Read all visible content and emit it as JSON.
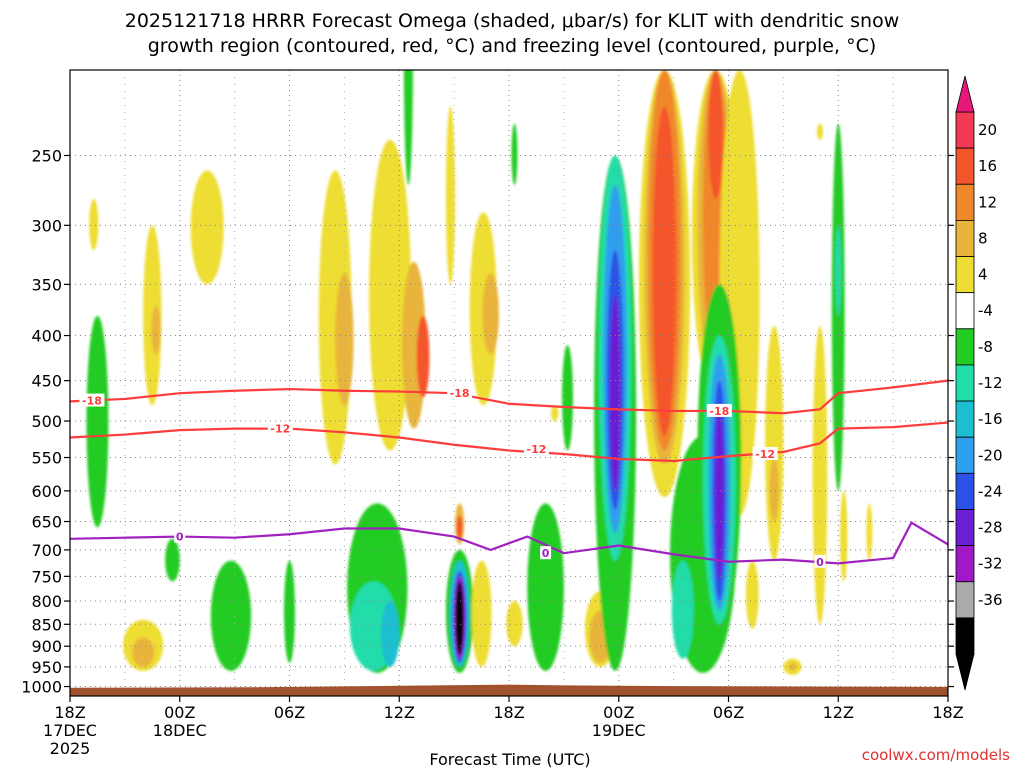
{
  "chart_data": {
    "type": "heatmap",
    "title_line1": "2025121718 HRRR Forecast Omega (shaded, μbar/s) for KLIT with dendritic snow",
    "title_line2": "growth region (contoured, red, °C) and freezing level (contoured, purple, °C)",
    "xlabel": "Forecast Time (UTC)",
    "watermark": "coolwx.com/models",
    "x_hours": [
      0,
      6,
      12,
      18,
      24,
      30,
      36,
      42,
      48
    ],
    "x_ticks": [
      {
        "hour": 0,
        "label": "18Z",
        "date": "17DEC",
        "year": "2025"
      },
      {
        "hour": 6,
        "label": "00Z",
        "date": "18DEC",
        "year": ""
      },
      {
        "hour": 12,
        "label": "06Z",
        "date": "",
        "year": ""
      },
      {
        "hour": 18,
        "label": "12Z",
        "date": "",
        "year": ""
      },
      {
        "hour": 24,
        "label": "18Z",
        "date": "",
        "year": ""
      },
      {
        "hour": 30,
        "label": "00Z",
        "date": "19DEC",
        "year": ""
      },
      {
        "hour": 36,
        "label": "06Z",
        "date": "",
        "year": ""
      },
      {
        "hour": 42,
        "label": "12Z",
        "date": "",
        "year": ""
      },
      {
        "hour": 48,
        "label": "18Z",
        "date": "",
        "year": ""
      }
    ],
    "y_ticks": [
      250,
      300,
      350,
      400,
      450,
      500,
      550,
      600,
      650,
      700,
      750,
      800,
      850,
      900,
      950,
      1000
    ],
    "ylim": [
      200,
      1025
    ],
    "colorbar": {
      "levels": [
        20,
        16,
        12,
        8,
        4,
        -4,
        -8,
        -12,
        -16,
        -20,
        -24,
        -28,
        -32,
        -36
      ],
      "colors": [
        "#f23a52",
        "#f5552a",
        "#f0882a",
        "#e8b43a",
        "#eedd33",
        "#ffffff",
        "#22cc22",
        "#22ddaa",
        "#1bbfd0",
        "#2f9fef",
        "#2a52e8",
        "#6a1fd5",
        "#a018c8",
        "#aaaaaa",
        "#000000"
      ]
    },
    "contours": [
      {
        "name": "-18",
        "color": "#ff3c3c",
        "points": [
          [
            0,
            475
          ],
          [
            3,
            472
          ],
          [
            6,
            465
          ],
          [
            9,
            462
          ],
          [
            12,
            460
          ],
          [
            15,
            462
          ],
          [
            18,
            463
          ],
          [
            21,
            465
          ],
          [
            24,
            478
          ],
          [
            27,
            482
          ],
          [
            30,
            485
          ],
          [
            33,
            487
          ],
          [
            36,
            487
          ],
          [
            39,
            490
          ],
          [
            41,
            485
          ],
          [
            42,
            465
          ],
          [
            45,
            458
          ],
          [
            48,
            450
          ]
        ]
      },
      {
        "name": "-12",
        "color": "#ff3c3c",
        "points": [
          [
            0,
            522
          ],
          [
            3,
            518
          ],
          [
            6,
            512
          ],
          [
            9,
            510
          ],
          [
            12,
            510
          ],
          [
            15,
            515
          ],
          [
            18,
            522
          ],
          [
            21,
            532
          ],
          [
            24,
            540
          ],
          [
            27,
            545
          ],
          [
            30,
            552
          ],
          [
            33,
            555
          ],
          [
            36,
            548
          ],
          [
            39,
            542
          ],
          [
            41,
            530
          ],
          [
            42,
            510
          ],
          [
            45,
            508
          ],
          [
            48,
            502
          ]
        ]
      },
      {
        "name": "0",
        "color": "#a020c0",
        "points": [
          [
            0,
            680
          ],
          [
            3,
            678
          ],
          [
            6,
            676
          ],
          [
            9,
            678
          ],
          [
            12,
            672
          ],
          [
            15,
            662
          ],
          [
            18,
            662
          ],
          [
            21,
            676
          ],
          [
            23,
            700
          ],
          [
            25,
            676
          ],
          [
            27,
            706
          ],
          [
            30,
            692
          ],
          [
            33,
            708
          ],
          [
            36,
            722
          ],
          [
            39,
            718
          ],
          [
            42,
            725
          ],
          [
            45,
            715
          ],
          [
            46,
            652
          ],
          [
            48,
            690
          ]
        ]
      }
    ],
    "contour_labels": [
      {
        "text": "-18",
        "hour": 1.2,
        "p": 474
      },
      {
        "text": "-18",
        "hour": 21.3,
        "p": 465
      },
      {
        "text": "-18",
        "hour": 35.5,
        "p": 487
      },
      {
        "text": "-12",
        "hour": 11.5,
        "p": 510
      },
      {
        "text": "-12",
        "hour": 25.5,
        "p": 538
      },
      {
        "text": "-12",
        "hour": 38.0,
        "p": 545
      },
      {
        "text": "0",
        "hour": 6.0,
        "p": 676
      },
      {
        "text": "0",
        "hour": 26.0,
        "p": 706
      },
      {
        "text": "0",
        "hour": 41.0,
        "p": 722
      }
    ],
    "blobs": [
      {
        "hour": 1.3,
        "p1": 280,
        "p2": 320,
        "w": 0.5,
        "v": 6
      },
      {
        "hour": 1.5,
        "p1": 380,
        "p2": 660,
        "w": 1.2,
        "v": -6
      },
      {
        "hour": 4.5,
        "p1": 300,
        "p2": 480,
        "w": 1.0,
        "v": 6
      },
      {
        "hour": 4.7,
        "p1": 370,
        "p2": 420,
        "w": 0.5,
        "v": 10
      },
      {
        "hour": 7.5,
        "p1": 260,
        "p2": 350,
        "w": 1.8,
        "v": 6
      },
      {
        "hour": 5.6,
        "p1": 680,
        "p2": 760,
        "w": 0.8,
        "v": -6
      },
      {
        "hour": 4.0,
        "p1": 840,
        "p2": 960,
        "w": 2.2,
        "v": 6
      },
      {
        "hour": 4.0,
        "p1": 880,
        "p2": 950,
        "w": 1.2,
        "v": 10
      },
      {
        "hour": 8.8,
        "p1": 720,
        "p2": 960,
        "w": 2.2,
        "v": -6
      },
      {
        "hour": 12.0,
        "p1": 720,
        "p2": 940,
        "w": 0.6,
        "v": -6
      },
      {
        "hour": 14.5,
        "p1": 260,
        "p2": 560,
        "w": 1.8,
        "v": 6
      },
      {
        "hour": 15.0,
        "p1": 340,
        "p2": 480,
        "w": 1.0,
        "v": 10
      },
      {
        "hour": 17.5,
        "p1": 240,
        "p2": 540,
        "w": 2.3,
        "v": 6
      },
      {
        "hour": 18.8,
        "p1": 330,
        "p2": 510,
        "w": 1.3,
        "v": 10
      },
      {
        "hour": 19.3,
        "p1": 380,
        "p2": 470,
        "w": 0.7,
        "v": 16
      },
      {
        "hour": 16.8,
        "p1": 620,
        "p2": 965,
        "w": 3.3,
        "v": -6
      },
      {
        "hour": 16.6,
        "p1": 760,
        "p2": 960,
        "w": 2.6,
        "v": -10
      },
      {
        "hour": 17.5,
        "p1": 800,
        "p2": 950,
        "w": 1.0,
        "v": -14
      },
      {
        "hour": 18.5,
        "p1": 140,
        "p2": 270,
        "w": 0.5,
        "v": -6
      },
      {
        "hour": 20.8,
        "p1": 220,
        "p2": 350,
        "w": 0.5,
        "v": 6
      },
      {
        "hour": 21.3,
        "p1": 620,
        "p2": 690,
        "w": 0.5,
        "v": 10
      },
      {
        "hour": 21.3,
        "p1": 640,
        "p2": 680,
        "w": 0.3,
        "v": 18
      },
      {
        "hour": 21.3,
        "p1": 700,
        "p2": 965,
        "w": 1.5,
        "v": -8
      },
      {
        "hour": 21.3,
        "p1": 720,
        "p2": 950,
        "w": 1.1,
        "v": -14
      },
      {
        "hour": 21.3,
        "p1": 740,
        "p2": 940,
        "w": 0.8,
        "v": -22
      },
      {
        "hour": 21.3,
        "p1": 750,
        "p2": 930,
        "w": 0.6,
        "v": -30
      },
      {
        "hour": 21.3,
        "p1": 760,
        "p2": 920,
        "w": 0.45,
        "v": -38
      },
      {
        "hour": 22.6,
        "p1": 290,
        "p2": 480,
        "w": 1.5,
        "v": 6
      },
      {
        "hour": 23.0,
        "p1": 340,
        "p2": 420,
        "w": 0.9,
        "v": 10
      },
      {
        "hour": 22.5,
        "p1": 720,
        "p2": 950,
        "w": 1.1,
        "v": 6
      },
      {
        "hour": 24.3,
        "p1": 800,
        "p2": 900,
        "w": 0.9,
        "v": 6
      },
      {
        "hour": 24.3,
        "p1": 230,
        "p2": 270,
        "w": 0.3,
        "v": -6
      },
      {
        "hour": 26.5,
        "p1": 480,
        "p2": 500,
        "w": 0.4,
        "v": 6
      },
      {
        "hour": 26.0,
        "p1": 620,
        "p2": 960,
        "w": 2.0,
        "v": -6
      },
      {
        "hour": 27.2,
        "p1": 410,
        "p2": 540,
        "w": 0.6,
        "v": -6
      },
      {
        "hour": 29.0,
        "p1": 780,
        "p2": 950,
        "w": 1.7,
        "v": 6
      },
      {
        "hour": 29.0,
        "p1": 820,
        "p2": 940,
        "w": 1.2,
        "v": 10
      },
      {
        "hour": 29.8,
        "p1": 250,
        "p2": 960,
        "w": 2.3,
        "v": -6
      },
      {
        "hour": 29.8,
        "p1": 250,
        "p2": 720,
        "w": 1.8,
        "v": -12
      },
      {
        "hour": 29.8,
        "p1": 270,
        "p2": 670,
        "w": 1.3,
        "v": -18
      },
      {
        "hour": 29.8,
        "p1": 320,
        "p2": 630,
        "w": 0.9,
        "v": -22
      },
      {
        "hour": 29.8,
        "p1": 360,
        "p2": 600,
        "w": 0.6,
        "v": -26
      },
      {
        "hour": 32.5,
        "p1": 200,
        "p2": 610,
        "w": 2.8,
        "v": 6
      },
      {
        "hour": 32.5,
        "p1": 200,
        "p2": 560,
        "w": 2.2,
        "v": 10
      },
      {
        "hour": 32.5,
        "p1": 200,
        "p2": 540,
        "w": 1.8,
        "v": 14
      },
      {
        "hour": 32.5,
        "p1": 220,
        "p2": 520,
        "w": 1.3,
        "v": 18
      },
      {
        "hour": 35.3,
        "p1": 200,
        "p2": 470,
        "w": 2.6,
        "v": 6
      },
      {
        "hour": 35.3,
        "p1": 200,
        "p2": 450,
        "w": 2.0,
        "v": 10
      },
      {
        "hour": 35.3,
        "p1": 200,
        "p2": 430,
        "w": 1.4,
        "v": 14
      },
      {
        "hour": 35.3,
        "p1": 200,
        "p2": 280,
        "w": 0.8,
        "v": 18
      },
      {
        "hour": 36.6,
        "p1": 200,
        "p2": 640,
        "w": 2.2,
        "v": 6
      },
      {
        "hour": 34.6,
        "p1": 520,
        "p2": 965,
        "w": 3.6,
        "v": -6
      },
      {
        "hour": 35.5,
        "p1": 350,
        "p2": 870,
        "w": 2.4,
        "v": -6
      },
      {
        "hour": 35.5,
        "p1": 400,
        "p2": 850,
        "w": 1.8,
        "v": -12
      },
      {
        "hour": 35.5,
        "p1": 420,
        "p2": 820,
        "w": 1.2,
        "v": -18
      },
      {
        "hour": 35.5,
        "p1": 450,
        "p2": 800,
        "w": 0.75,
        "v": -22
      },
      {
        "hour": 35.5,
        "p1": 480,
        "p2": 760,
        "w": 0.5,
        "v": -26
      },
      {
        "hour": 33.5,
        "p1": 720,
        "p2": 930,
        "w": 1.2,
        "v": -12
      },
      {
        "hour": 37.3,
        "p1": 720,
        "p2": 860,
        "w": 0.7,
        "v": 6
      },
      {
        "hour": 38.5,
        "p1": 390,
        "p2": 720,
        "w": 1.0,
        "v": 6
      },
      {
        "hour": 38.5,
        "p1": 550,
        "p2": 650,
        "w": 0.5,
        "v": 10
      },
      {
        "hour": 39.5,
        "p1": 930,
        "p2": 970,
        "w": 1.0,
        "v": 6
      },
      {
        "hour": 39.5,
        "p1": 940,
        "p2": 960,
        "w": 0.4,
        "v": 10
      },
      {
        "hour": 41.0,
        "p1": 390,
        "p2": 850,
        "w": 0.8,
        "v": 6
      },
      {
        "hour": 41.0,
        "p1": 230,
        "p2": 240,
        "w": 0.3,
        "v": 6
      },
      {
        "hour": 42.0,
        "p1": 230,
        "p2": 600,
        "w": 0.7,
        "v": -6
      },
      {
        "hour": 42.0,
        "p1": 300,
        "p2": 380,
        "w": 0.3,
        "v": -12
      },
      {
        "hour": 42.3,
        "p1": 600,
        "p2": 760,
        "w": 0.4,
        "v": 6
      },
      {
        "hour": 43.7,
        "p1": 620,
        "p2": 720,
        "w": 0.3,
        "v": 6
      }
    ]
  }
}
